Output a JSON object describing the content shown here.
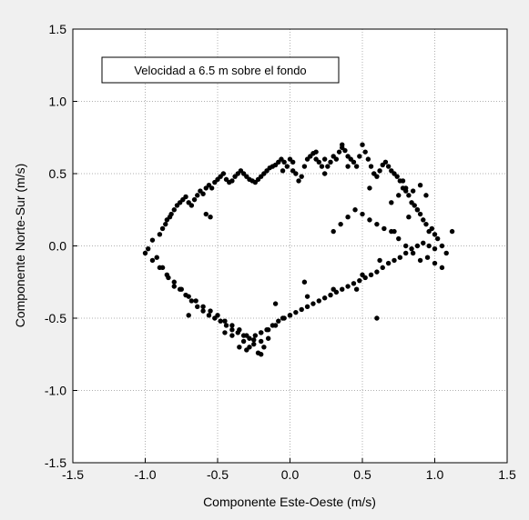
{
  "chart_data": {
    "type": "scatter",
    "title": "",
    "annotation": "Velocidad a 6.5 m sobre el fondo",
    "xlabel": "Componente Este-Oeste (m/s)",
    "ylabel": "Componente Norte-Sur (m/s)",
    "xlim": [
      -1.5,
      1.5
    ],
    "ylim": [
      -1.5,
      1.5
    ],
    "xticks": [
      -1.5,
      -1.0,
      -0.5,
      0.0,
      0.5,
      1.0,
      1.5
    ],
    "yticks": [
      -1.5,
      -1.0,
      -0.5,
      0.0,
      0.5,
      1.0,
      1.5
    ],
    "xtick_labels": [
      "-1.5",
      "-1.0",
      "-0.5",
      "0.0",
      "0.5",
      "1.0",
      "1.5"
    ],
    "ytick_labels": [
      "-1.5",
      "-1.0",
      "-0.5",
      "0.0",
      "0.5",
      "1.0",
      "1.5"
    ],
    "grid": true,
    "legend": "none",
    "marker_color": "#000000",
    "background": "#f0f0f0",
    "plot_background": "#ffffff",
    "series": [
      {
        "x": [
          -1.0,
          -0.98,
          -0.95,
          -0.92,
          -0.9,
          -0.88,
          -0.86,
          -0.85,
          -0.83,
          -0.82,
          -0.8,
          -0.78,
          -0.76,
          -0.74,
          -0.72,
          -0.7,
          -0.68,
          -0.66,
          -0.64,
          -0.62,
          -0.6,
          -0.58,
          -0.56,
          -0.54,
          -0.52,
          -0.5,
          -0.48,
          -0.46,
          -0.44,
          -0.42,
          -0.4,
          -0.38,
          -0.36,
          -0.34,
          -0.32,
          -0.3,
          -0.28,
          -0.26,
          -0.24,
          -0.22,
          -0.2,
          -0.18,
          -0.16,
          -0.14,
          -0.12,
          -0.1,
          -0.08,
          -0.06,
          -0.04,
          -0.02,
          0.0,
          0.02,
          0.04,
          0.06,
          0.08,
          0.1,
          0.12,
          0.14,
          0.16,
          0.18,
          0.2,
          0.22,
          0.24,
          0.26,
          0.28,
          0.3,
          0.32,
          0.34,
          0.36,
          0.38,
          0.4,
          0.42,
          0.44,
          0.46,
          0.48,
          0.5,
          0.52,
          0.54,
          0.56,
          0.58,
          0.6,
          0.62,
          0.64,
          0.66,
          0.68,
          0.7,
          0.72,
          0.74,
          0.76,
          0.78,
          0.8,
          0.82,
          0.84,
          0.86,
          0.88,
          0.9,
          0.92,
          0.94,
          0.96,
          0.98,
          1.0,
          1.02,
          1.05,
          1.08,
          1.12,
          -0.95,
          -0.9,
          -0.85,
          -0.8,
          -0.75,
          -0.7,
          -0.65,
          -0.6,
          -0.55,
          -0.5,
          -0.45,
          -0.4,
          -0.35,
          -0.3,
          -0.25,
          -0.2,
          -0.15,
          -0.1,
          -0.05,
          0.0,
          -0.88,
          -0.84,
          -0.8,
          -0.76,
          -0.72,
          -0.68,
          -0.64,
          -0.6,
          -0.56,
          -0.52,
          -0.48,
          -0.44,
          -0.4,
          -0.36,
          -0.32,
          -0.28,
          -0.24,
          -0.2,
          -0.16,
          -0.12,
          -0.08,
          -0.04,
          0.0,
          0.04,
          0.08,
          0.12,
          0.16,
          0.2,
          0.24,
          0.28,
          0.32,
          0.36,
          0.4,
          0.44,
          0.48,
          0.52,
          0.56,
          0.6,
          0.64,
          0.68,
          0.72,
          0.76,
          0.8,
          0.84,
          0.88,
          0.92,
          0.96,
          1.0,
          0.3,
          0.35,
          0.4,
          0.45,
          0.5,
          0.55,
          0.6,
          0.65,
          0.7,
          0.75,
          0.8,
          0.85,
          0.9,
          0.95,
          1.0,
          1.05,
          -0.35,
          -0.3,
          -0.25,
          -0.2,
          -0.15,
          -0.4,
          -0.45,
          -0.28,
          -0.22,
          -0.32,
          0.7,
          0.75,
          0.8,
          0.85,
          0.9,
          0.78,
          0.82,
          0.88,
          0.72,
          0.94,
          -0.2,
          -0.18,
          0.18,
          0.24,
          -0.55,
          0.6,
          0.12,
          -0.7,
          -0.1,
          0.1,
          0.5,
          0.46,
          -0.58,
          0.02,
          0.3,
          0.4,
          -0.05,
          0.55,
          0.62,
          0.36
        ],
        "y": [
          -0.05,
          -0.02,
          0.04,
          -0.08,
          0.08,
          0.12,
          0.15,
          0.18,
          0.2,
          0.22,
          0.25,
          0.28,
          0.3,
          0.32,
          0.34,
          0.3,
          0.28,
          0.32,
          0.35,
          0.38,
          0.36,
          0.4,
          0.42,
          0.4,
          0.44,
          0.46,
          0.48,
          0.5,
          0.46,
          0.44,
          0.45,
          0.48,
          0.5,
          0.52,
          0.5,
          0.48,
          0.46,
          0.45,
          0.44,
          0.46,
          0.48,
          0.5,
          0.52,
          0.54,
          0.55,
          0.56,
          0.58,
          0.6,
          0.58,
          0.55,
          0.6,
          0.52,
          0.5,
          0.45,
          0.48,
          0.55,
          0.6,
          0.62,
          0.64,
          0.6,
          0.58,
          0.55,
          0.5,
          0.55,
          0.58,
          0.62,
          0.6,
          0.65,
          0.68,
          0.66,
          0.62,
          0.6,
          0.58,
          0.55,
          0.62,
          0.7,
          0.65,
          0.6,
          0.55,
          0.5,
          0.48,
          0.52,
          0.56,
          0.58,
          0.55,
          0.52,
          0.5,
          0.48,
          0.45,
          0.4,
          0.38,
          0.35,
          0.3,
          0.28,
          0.25,
          0.22,
          0.18,
          0.15,
          0.1,
          0.12,
          0.08,
          0.05,
          0.0,
          -0.05,
          0.1,
          -0.1,
          -0.15,
          -0.2,
          -0.25,
          -0.3,
          -0.35,
          -0.38,
          -0.42,
          -0.45,
          -0.48,
          -0.52,
          -0.55,
          -0.58,
          -0.62,
          -0.65,
          -0.6,
          -0.58,
          -0.55,
          -0.5,
          -0.48,
          -0.15,
          -0.22,
          -0.28,
          -0.3,
          -0.34,
          -0.38,
          -0.42,
          -0.45,
          -0.48,
          -0.5,
          -0.52,
          -0.55,
          -0.58,
          -0.6,
          -0.62,
          -0.64,
          -0.62,
          -0.6,
          -0.58,
          -0.55,
          -0.52,
          -0.5,
          -0.48,
          -0.46,
          -0.44,
          -0.42,
          -0.4,
          -0.38,
          -0.36,
          -0.34,
          -0.32,
          -0.3,
          -0.28,
          -0.26,
          -0.24,
          -0.22,
          -0.2,
          -0.18,
          -0.15,
          -0.12,
          -0.1,
          -0.08,
          -0.05,
          -0.02,
          0.0,
          0.02,
          0.0,
          -0.02,
          0.1,
          0.15,
          0.2,
          0.25,
          0.22,
          0.18,
          0.15,
          0.12,
          0.1,
          0.05,
          0.0,
          -0.05,
          -0.1,
          -0.08,
          -0.12,
          -0.15,
          -0.7,
          -0.72,
          -0.68,
          -0.66,
          -0.64,
          -0.62,
          -0.6,
          -0.7,
          -0.74,
          -0.66,
          0.3,
          0.35,
          0.4,
          0.38,
          0.42,
          0.45,
          0.2,
          0.25,
          0.1,
          0.35,
          -0.75,
          -0.7,
          0.65,
          0.6,
          0.2,
          -0.5,
          -0.35,
          -0.48,
          -0.4,
          -0.25,
          -0.2,
          -0.3,
          0.22,
          0.58,
          -0.3,
          0.55,
          0.52,
          0.4,
          -0.1,
          0.7
        ]
      }
    ]
  }
}
